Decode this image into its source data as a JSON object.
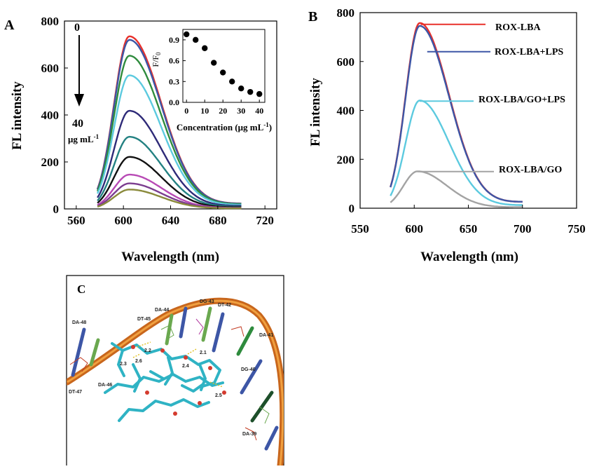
{
  "chart_data": [
    {
      "panel_label": "A",
      "type": "line",
      "xlabel": "Wavelength (nm)",
      "ylabel": "FL intensity",
      "xlim": [
        550,
        730
      ],
      "ylim": [
        0,
        800
      ],
      "xticks": [
        560,
        600,
        640,
        680,
        720
      ],
      "yticks": [
        0,
        200,
        400,
        600,
        800
      ],
      "grid": false,
      "annotations": {
        "top": "0",
        "bottom": "40",
        "unit": "μg mL",
        "unit_sup": "-1"
      },
      "curve_range": [
        578,
        700
      ],
      "series": [
        {
          "color": "#e8312b",
          "peak": 730
        },
        {
          "color": "#3d56a6",
          "peak": 715
        },
        {
          "color": "#2f8b3d",
          "peak": 648
        },
        {
          "color": "#5ccadf",
          "peak": 565
        },
        {
          "color": "#2e2a78",
          "peak": 415
        },
        {
          "color": "#238182",
          "peak": 305
        },
        {
          "color": "#111111",
          "peak": 220
        },
        {
          "color": "#b84ab5",
          "peak": 145
        },
        {
          "color": "#7b3d8f",
          "peak": 108
        },
        {
          "color": "#8a8a3b",
          "peak": 82
        }
      ],
      "inset": {
        "type": "scatter",
        "ylabel": "F/F",
        "ylabel_sub": "0",
        "xlabel": "Concentration (μg mL",
        "xlabel_sup": "-1",
        "xlabel_end": ")",
        "xlim": [
          -2,
          43
        ],
        "ylim": [
          0,
          1.05
        ],
        "xticks": [
          0,
          10,
          20,
          30,
          40
        ],
        "yticks": [
          0.0,
          0.3,
          0.6,
          0.9
        ],
        "ytick_labels": [
          "0.0",
          "0.3",
          "0.6",
          "0.9"
        ],
        "x": [
          0,
          5,
          10,
          15,
          20,
          25,
          30,
          35,
          40
        ],
        "y": [
          0.98,
          0.9,
          0.78,
          0.57,
          0.43,
          0.3,
          0.2,
          0.15,
          0.12
        ]
      }
    },
    {
      "panel_label": "B",
      "type": "line",
      "xlabel": "Wavelength (nm)",
      "ylabel": "FL intensity",
      "xlim": [
        550,
        750
      ],
      "ylim": [
        0,
        800
      ],
      "xticks": [
        550,
        600,
        650,
        700,
        750
      ],
      "yticks": [
        0,
        200,
        400,
        600,
        800
      ],
      "grid": false,
      "series": [
        {
          "name": "ROX-LBA",
          "color": "#e8312b",
          "peak": 752,
          "peak_x": 605,
          "range": [
            578,
            700
          ],
          "end": 25
        },
        {
          "name": "ROX-LBA+LPS",
          "color": "#3d56a6",
          "peak": 740,
          "peak_x": 605,
          "range": [
            578,
            700
          ],
          "end": 25
        },
        {
          "name": "ROX-LBA/GO+LPS",
          "color": "#5ccadf",
          "peak": 438,
          "peak_x": 605,
          "range": [
            578,
            700
          ],
          "end": 12
        },
        {
          "name": "ROX-LBA/GO",
          "color": "#a3a3a3",
          "peak": 150,
          "peak_x": 603,
          "range": [
            578,
            700
          ],
          "end": 4
        }
      ]
    }
  ],
  "panel_c": {
    "label": "C",
    "residues": [
      "DA-48",
      "DT-45",
      "DA-44",
      "DG-43",
      "DT-42",
      "DA-41",
      "DG-40",
      "DA-39",
      "DA-46",
      "DT-47"
    ],
    "distances": [
      "2.2",
      "2.6",
      "2.3",
      "2.1",
      "2.4",
      "2.5"
    ]
  }
}
